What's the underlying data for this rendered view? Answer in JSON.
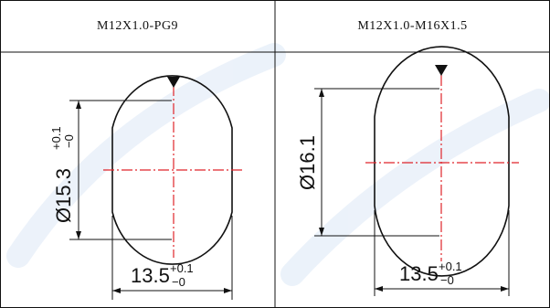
{
  "table": {
    "columns": [
      {
        "header": "M12X1.0-PG9",
        "height_dim": {
          "main": "Ø15.3",
          "tol_upper": "+0.1",
          "tol_lower": "−0"
        },
        "width_dim": {
          "main": "13.5",
          "tol_upper": "+0.1",
          "tol_lower": "−0"
        }
      },
      {
        "header": "M12X1.0-M16X1.5",
        "height_dim": {
          "main": "Ø16.1"
        },
        "width_dim": {
          "main": "13.5",
          "tol_upper": "+0.1",
          "tol_lower": "−0"
        }
      }
    ]
  },
  "colors": {
    "line": "#111111",
    "centerline": "#e0242a",
    "watermark": "#dce8f6"
  },
  "icons": {
    "orientation_marker": "triangle-down-icon"
  }
}
